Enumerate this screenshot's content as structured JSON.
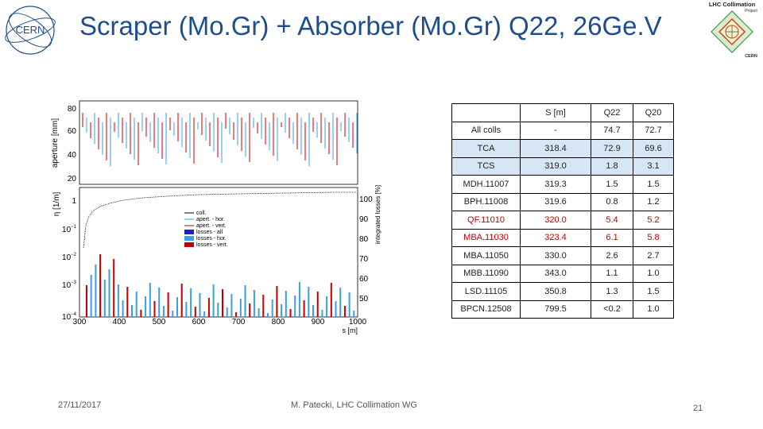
{
  "slide": {
    "title": "Scraper (Mo.Gr) + Absorber (Mo.Gr) Q22, 26Ge.V",
    "date": "27/11/2017",
    "author": "M. Patecki, LHC Collimation WG",
    "page_number": "21"
  },
  "logos": {
    "left_text": "CERN",
    "right_line1": "LHC Collimation",
    "right_line2": "Project",
    "right_line3": "CERN"
  },
  "plot": {
    "top_ylabel": "aperture [mm]",
    "top_yticks": [
      "80",
      "60",
      "40",
      "20"
    ],
    "bottom_ylabel": "η [1/m]",
    "right_ylabel": "integrated losses [%]",
    "right_yticks": [
      "100",
      "90",
      "80",
      "70",
      "60",
      "50"
    ],
    "xlabel": "s [m]",
    "xticks": [
      "300",
      "400",
      "500",
      "600",
      "700",
      "800",
      "900",
      "1000"
    ],
    "legend": [
      {
        "label": "coll.",
        "color": "#000000"
      },
      {
        "label": "apert. - hor.",
        "color": "#3aa0e0"
      },
      {
        "label": "apert. - vert.",
        "color": "#c00000"
      },
      {
        "label": "losses - all",
        "color": "#2020c0"
      },
      {
        "label": "losses - hor.",
        "color": "#3aa0e0"
      },
      {
        "label": "losses - vert.",
        "color": "#c00000"
      }
    ]
  },
  "table": {
    "headers": [
      "",
      "S [m]",
      "Q22",
      "Q20"
    ],
    "rows": [
      {
        "cells": [
          "All colls",
          "-",
          "74.7",
          "72.7"
        ],
        "style": "plain"
      },
      {
        "cells": [
          "TCA",
          "318.4",
          "72.9",
          "69.6"
        ],
        "style": "lb"
      },
      {
        "cells": [
          "TCS",
          "319.0",
          "1.8",
          "3.1"
        ],
        "style": "lb"
      },
      {
        "cells": [
          "MDH.11007",
          "319.3",
          "1.5",
          "1.5"
        ],
        "style": "plain"
      },
      {
        "cells": [
          "BPH.11008",
          "319.6",
          "0.8",
          "1.2"
        ],
        "style": "plain"
      },
      {
        "cells": [
          "QF.11010",
          "320.0",
          "5.4",
          "5.2"
        ],
        "style": "red"
      },
      {
        "cells": [
          "MBA.11030",
          "323.4",
          "6.1",
          "5.8"
        ],
        "style": "red"
      },
      {
        "cells": [
          "MBA.11050",
          "330.0",
          "2.6",
          "2.7"
        ],
        "style": "plain"
      },
      {
        "cells": [
          "MBB.11090",
          "343.0",
          "1.1",
          "1.0"
        ],
        "style": "plain"
      },
      {
        "cells": [
          "LSD.11105",
          "350.8",
          "1.3",
          "1.5"
        ],
        "style": "plain"
      },
      {
        "cells": [
          "BPCN.12508",
          "799.5",
          "<0.2",
          "1.0"
        ],
        "style": "plain"
      }
    ]
  }
}
